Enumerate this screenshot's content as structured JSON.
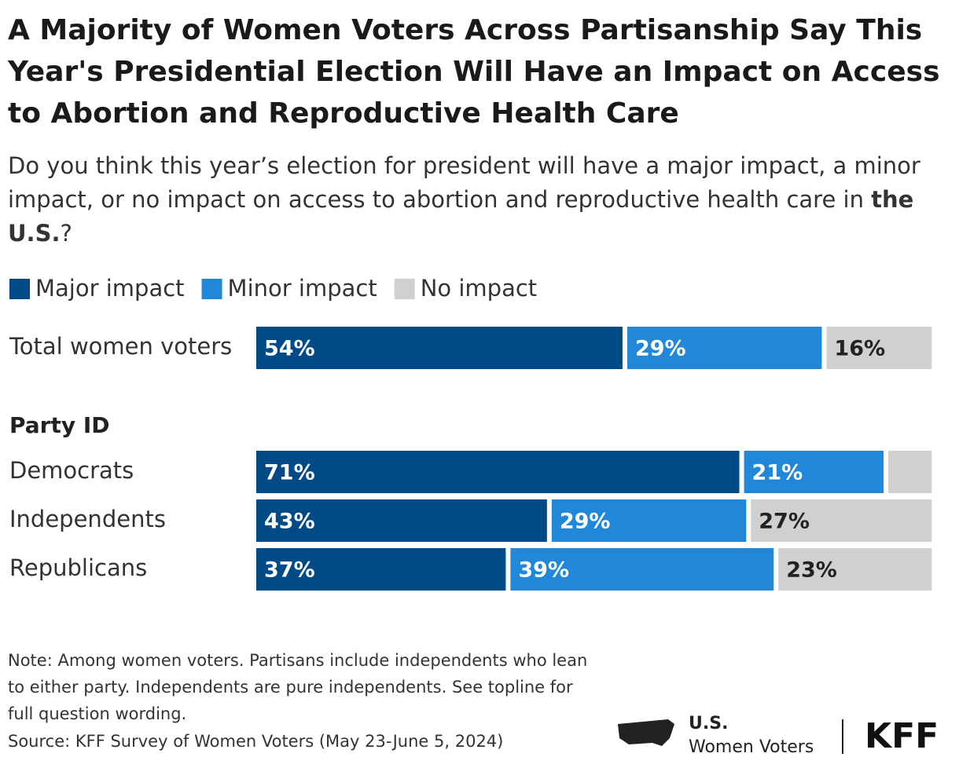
{
  "chart_data": {
    "type": "stacked-bar",
    "title": "A Majority of Women Voters Across Partisanship Say This Year's Presidential Election Will Have an Impact on Access to Abortion and Reproductive Health Care",
    "subtitle": [
      "Do you think this year’s election for president will have a major impact, a minor impact, or no impact on access to abortion and reproductive health care in ",
      "the U.S.",
      "?"
    ],
    "group_label": "Party ID",
    "categories": [
      "Total women voters",
      "Democrats",
      "Independents",
      "Republicans"
    ],
    "series": [
      {
        "name": "Major impact",
        "color": "#004b87",
        "values": [
          54,
          71,
          43,
          37
        ],
        "value_labels": [
          "54%",
          "71%",
          "43%",
          "37%"
        ]
      },
      {
        "name": "Minor impact",
        "color": "#2187d9",
        "values": [
          29,
          21,
          29,
          39
        ],
        "value_labels": [
          "29%",
          "21%",
          "29%",
          "39%"
        ]
      },
      {
        "name": "No impact",
        "color": "#d0d0d0",
        "values": [
          16,
          7,
          27,
          23
        ],
        "value_labels": [
          "16%",
          null,
          "27%",
          "23%"
        ]
      }
    ],
    "xlim": [
      0,
      100
    ],
    "note": "Note: Among women voters. Partisans include independents who lean to either party. Independents are pure independents. See topline for full question wording.",
    "source": "Source: KFF Survey of Women Voters (May 23-June 5, 2024)",
    "logo": {
      "line1": "U.S.",
      "line2": "Women Voters",
      "brand": "KFF"
    }
  }
}
